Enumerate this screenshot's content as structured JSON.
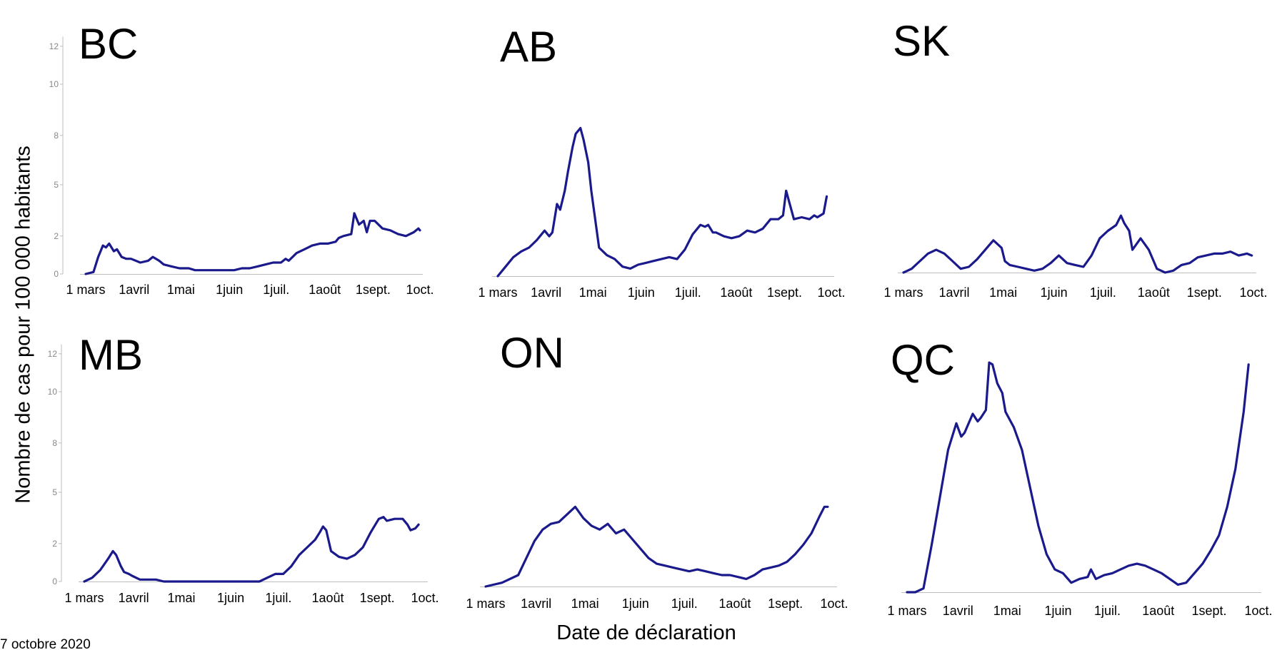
{
  "figure": {
    "ylabel": "Nombre de cas pour 100 000 habitants",
    "xlabel": "Date de déclaration",
    "footnote": "7 octobre 2020"
  },
  "chart_data": [
    {
      "type": "line",
      "title": "BC",
      "x_ticks": [
        "1 mars",
        "1avril",
        "1mai",
        "1juin",
        "1juil.",
        "1août",
        "1sept.",
        "1oct."
      ],
      "y_ticks": [
        "0",
        "2",
        "5",
        "8",
        "10",
        "12"
      ],
      "ylim": [
        0,
        12.5
      ],
      "series": [
        {
          "color": "#1a1a8c",
          "x": [
            0,
            5,
            8,
            11,
            13,
            15,
            18,
            20,
            23,
            26,
            29,
            35,
            40,
            43,
            47,
            50,
            55,
            60,
            63,
            66,
            70,
            75,
            80,
            85,
            90,
            95,
            100,
            105,
            110,
            115,
            120,
            125,
            128,
            130,
            135,
            140,
            145,
            150,
            155,
            160,
            162,
            165,
            170,
            172,
            175,
            178,
            180,
            182,
            185,
            190,
            195,
            200,
            205,
            210,
            213,
            214
          ],
          "y": [
            0,
            0.1,
            0.9,
            1.5,
            1.4,
            1.6,
            1.2,
            1.3,
            0.9,
            0.8,
            0.8,
            0.6,
            0.7,
            0.9,
            0.7,
            0.5,
            0.4,
            0.3,
            0.3,
            0.3,
            0.2,
            0.2,
            0.2,
            0.2,
            0.2,
            0.2,
            0.3,
            0.3,
            0.4,
            0.5,
            0.6,
            0.6,
            0.8,
            0.7,
            1.1,
            1.3,
            1.5,
            1.6,
            1.6,
            1.7,
            1.9,
            2.0,
            2.1,
            3.2,
            2.6,
            2.8,
            2.2,
            2.8,
            2.8,
            2.4,
            2.3,
            2.1,
            2.0,
            2.2,
            2.4,
            2.3
          ]
        }
      ]
    },
    {
      "type": "line",
      "title": "AB",
      "x_ticks": [
        "1 mars",
        "1avril",
        "1mai",
        "1juin",
        "1juil.",
        "1août",
        "1sept.",
        "1oct."
      ],
      "y_ticks": [],
      "ylim": [
        0,
        12.5
      ],
      "series": [
        {
          "color": "#1a1a8c",
          "x": [
            0,
            5,
            10,
            15,
            20,
            25,
            30,
            33,
            35,
            38,
            40,
            43,
            45,
            48,
            50,
            53,
            55,
            58,
            60,
            65,
            70,
            75,
            80,
            85,
            90,
            95,
            100,
            105,
            110,
            115,
            120,
            125,
            130,
            133,
            135,
            138,
            140,
            145,
            150,
            155,
            160,
            165,
            170,
            175,
            180,
            183,
            185,
            190,
            195,
            200,
            203,
            205,
            209,
            211
          ],
          "y": [
            0,
            0.5,
            1.0,
            1.3,
            1.5,
            1.9,
            2.4,
            2.1,
            2.3,
            3.8,
            3.5,
            4.5,
            5.5,
            6.8,
            7.5,
            7.8,
            7.2,
            6.0,
            4.5,
            1.5,
            1.1,
            0.9,
            0.5,
            0.4,
            0.6,
            0.7,
            0.8,
            0.9,
            1.0,
            0.9,
            1.4,
            2.2,
            2.7,
            2.6,
            2.7,
            2.3,
            2.3,
            2.1,
            2.0,
            2.1,
            2.4,
            2.3,
            2.5,
            3.0,
            3.0,
            3.2,
            4.5,
            3.0,
            3.1,
            3.0,
            3.2,
            3.1,
            3.3,
            4.2
          ]
        }
      ]
    },
    {
      "type": "line",
      "title": "SK",
      "x_ticks": [
        "1 mars",
        "1avril",
        "1mai",
        "1juin",
        "1juil.",
        "1août",
        "1sept.",
        "1oct."
      ],
      "y_ticks": [],
      "ylim": [
        0,
        12.5
      ],
      "series": [
        {
          "color": "#1a1a8c",
          "x": [
            0,
            5,
            10,
            15,
            20,
            25,
            30,
            35,
            40,
            45,
            50,
            55,
            60,
            62,
            65,
            70,
            75,
            80,
            85,
            90,
            95,
            100,
            105,
            110,
            115,
            120,
            125,
            130,
            133,
            135,
            138,
            140,
            145,
            150,
            155,
            160,
            165,
            170,
            175,
            180,
            185,
            190,
            195,
            200,
            205,
            210,
            213
          ],
          "y": [
            0,
            0.2,
            0.6,
            1.0,
            1.2,
            1.0,
            0.6,
            0.2,
            0.3,
            0.7,
            1.2,
            1.7,
            1.3,
            0.6,
            0.4,
            0.3,
            0.2,
            0.1,
            0.2,
            0.5,
            0.9,
            0.5,
            0.4,
            0.3,
            0.9,
            1.8,
            2.2,
            2.5,
            3.0,
            2.6,
            2.2,
            1.2,
            1.8,
            1.2,
            0.2,
            0.0,
            0.1,
            0.4,
            0.5,
            0.8,
            0.9,
            1.0,
            1.0,
            1.1,
            0.9,
            1.0,
            0.9
          ]
        }
      ]
    },
    {
      "type": "line",
      "title": "MB",
      "x_ticks": [
        "1 mars",
        "1avril",
        "1mai",
        "1juin",
        "1juil.",
        "1août",
        "1sept.",
        "1oct."
      ],
      "y_ticks": [
        "0",
        "2",
        "5",
        "8",
        "10",
        "12"
      ],
      "ylim": [
        0,
        12.5
      ],
      "series": [
        {
          "color": "#1a1a8c",
          "x": [
            0,
            5,
            10,
            15,
            18,
            20,
            23,
            25,
            28,
            30,
            35,
            40,
            45,
            50,
            60,
            70,
            80,
            90,
            100,
            110,
            115,
            120,
            125,
            130,
            135,
            140,
            145,
            148,
            150,
            152,
            155,
            160,
            165,
            170,
            175,
            180,
            185,
            188,
            190,
            195,
            200,
            203,
            205,
            208,
            210
          ],
          "y": [
            0,
            0.2,
            0.6,
            1.2,
            1.6,
            1.4,
            0.8,
            0.5,
            0.4,
            0.3,
            0.1,
            0.1,
            0.1,
            0.0,
            0.0,
            0.0,
            0.0,
            0.0,
            0.0,
            0.0,
            0.2,
            0.4,
            0.4,
            0.8,
            1.4,
            1.8,
            2.2,
            2.6,
            2.9,
            2.7,
            1.6,
            1.3,
            1.2,
            1.4,
            1.8,
            2.6,
            3.3,
            3.4,
            3.2,
            3.3,
            3.3,
            3.0,
            2.7,
            2.8,
            3.0
          ]
        }
      ]
    },
    {
      "type": "line",
      "title": "ON",
      "x_ticks": [
        "1 mars",
        "1avril",
        "1mai",
        "1juin",
        "1juil.",
        "1août",
        "1sept.",
        "1oct."
      ],
      "y_ticks": [],
      "ylim": [
        0,
        12.5
      ],
      "series": [
        {
          "color": "#1a1a8c",
          "x": [
            0,
            10,
            20,
            25,
            30,
            35,
            40,
            45,
            50,
            55,
            60,
            65,
            70,
            75,
            80,
            85,
            90,
            95,
            100,
            105,
            110,
            115,
            120,
            125,
            130,
            135,
            140,
            145,
            150,
            155,
            160,
            165,
            170,
            175,
            180,
            185,
            190,
            195,
            200,
            205,
            208,
            210
          ],
          "y": [
            0,
            0.2,
            0.6,
            1.5,
            2.4,
            3.0,
            3.3,
            3.4,
            3.8,
            4.2,
            3.6,
            3.2,
            3.0,
            3.3,
            2.8,
            3.0,
            2.5,
            2.0,
            1.5,
            1.2,
            1.1,
            1.0,
            0.9,
            0.8,
            0.9,
            0.8,
            0.7,
            0.6,
            0.6,
            0.5,
            0.4,
            0.6,
            0.9,
            1.0,
            1.1,
            1.3,
            1.7,
            2.2,
            2.8,
            3.7,
            4.2,
            4.2
          ]
        }
      ]
    },
    {
      "type": "line",
      "title": "QC",
      "x_ticks": [
        "1 mars",
        "1avril",
        "1mai",
        "1juin",
        "1juil.",
        "1août",
        "1sept.",
        "1oct."
      ],
      "y_ticks": [],
      "ylim": [
        0,
        12.5
      ],
      "series": [
        {
          "color": "#1a1a8c",
          "x": [
            0,
            5,
            10,
            15,
            20,
            25,
            30,
            33,
            35,
            38,
            40,
            43,
            45,
            48,
            50,
            52,
            55,
            58,
            60,
            65,
            70,
            75,
            80,
            85,
            90,
            95,
            100,
            105,
            110,
            112,
            115,
            120,
            125,
            130,
            135,
            140,
            145,
            150,
            155,
            160,
            165,
            170,
            175,
            180,
            185,
            190,
            195,
            200,
            205,
            208
          ],
          "y": [
            0,
            0,
            0.2,
            2.5,
            5.0,
            7.5,
            8.9,
            8.2,
            8.4,
            9.0,
            9.4,
            9.0,
            9.2,
            9.6,
            12.1,
            12.0,
            11.0,
            10.5,
            9.5,
            8.7,
            7.5,
            5.5,
            3.5,
            2.0,
            1.2,
            1.0,
            0.5,
            0.7,
            0.8,
            1.2,
            0.7,
            0.9,
            1.0,
            1.2,
            1.4,
            1.5,
            1.4,
            1.2,
            1.0,
            0.7,
            0.4,
            0.5,
            1.0,
            1.5,
            2.2,
            3.0,
            4.5,
            6.5,
            9.5,
            12.0
          ]
        }
      ]
    }
  ]
}
